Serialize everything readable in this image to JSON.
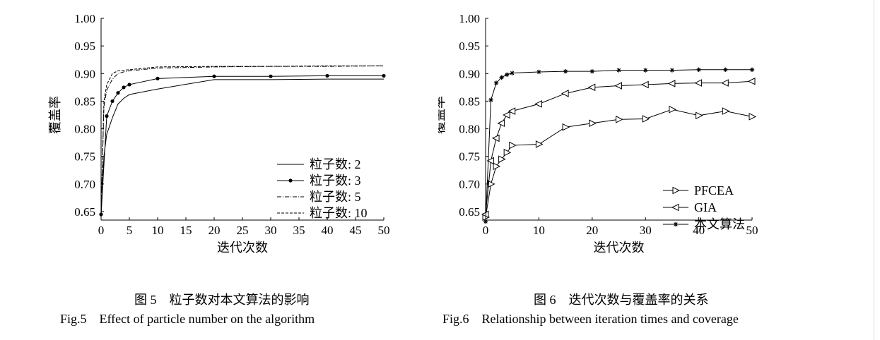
{
  "charts": [
    {
      "type": "line",
      "xlabel": "迭代次数",
      "ylabel": "覆盖率",
      "xlim": [
        0,
        50
      ],
      "ylim": [
        0.65,
        1.0
      ],
      "xticks": [
        "0",
        "5",
        "10",
        "15",
        "20",
        "25",
        "30",
        "35",
        "40",
        "45",
        "50"
      ],
      "yticks": [
        "0.65",
        "0.70",
        "0.75",
        "0.80",
        "0.85",
        "0.90",
        "0.95",
        "1.00"
      ],
      "caption_cn": "图 5　粒子数对本文算法的影响",
      "caption_en": "Fig.5　Effect of particle number on the algorithm",
      "legend_position": "right",
      "series": [
        {
          "name": "粒子数: 2",
          "style": "solid",
          "marker": "none",
          "x": [
            0,
            0.5,
            1,
            2,
            3,
            4,
            5,
            10,
            20,
            30,
            40,
            50
          ],
          "y": [
            0.645,
            0.75,
            0.79,
            0.82,
            0.845,
            0.855,
            0.862,
            0.872,
            0.889,
            0.889,
            0.89,
            0.89
          ]
        },
        {
          "name": "粒子数: 3",
          "style": "solid",
          "marker": "dot",
          "x": [
            0,
            1,
            2,
            3,
            4,
            5,
            10,
            20,
            30,
            40,
            50
          ],
          "y": [
            0.645,
            0.823,
            0.85,
            0.865,
            0.875,
            0.88,
            0.891,
            0.895,
            0.895,
            0.896,
            0.896
          ]
        },
        {
          "name": "粒子数: 5",
          "style": "dashdot",
          "marker": "none",
          "x": [
            0,
            0.5,
            1,
            2,
            3,
            4,
            5,
            10,
            20,
            30,
            40,
            50
          ],
          "y": [
            0.645,
            0.84,
            0.87,
            0.89,
            0.9,
            0.903,
            0.905,
            0.91,
            0.912,
            0.913,
            0.913,
            0.914
          ]
        },
        {
          "name": "粒子数: 10",
          "style": "dashed",
          "marker": "none",
          "x": [
            0,
            0.5,
            1,
            2,
            3,
            4,
            5,
            10,
            20,
            30,
            40,
            50
          ],
          "y": [
            0.645,
            0.85,
            0.88,
            0.9,
            0.905,
            0.906,
            0.907,
            0.912,
            0.913,
            0.913,
            0.914,
            0.914
          ]
        }
      ]
    },
    {
      "type": "line",
      "xlabel": "迭代次数",
      "ylabel": "覆盖率",
      "xlim": [
        0,
        50
      ],
      "ylim": [
        0.65,
        1.0
      ],
      "xticks": [
        "0",
        "10",
        "20",
        "30",
        "40",
        "50"
      ],
      "yticks": [
        "0.65",
        "0.70",
        "0.75",
        "0.80",
        "0.85",
        "0.90",
        "0.95",
        "1.00"
      ],
      "caption_cn": "图 6　迭代次数与覆盖率的关系",
      "caption_en": "Fig.6　Relationship between iteration times and coverage",
      "legend_position": "bottom-right",
      "series": [
        {
          "name": "PFCEA",
          "style": "solid",
          "marker": "triangle-right",
          "x": [
            0,
            1,
            2,
            3,
            4,
            5,
            10,
            15,
            20,
            25,
            30,
            35,
            40,
            45,
            50
          ],
          "y": [
            0.64,
            0.7,
            0.732,
            0.745,
            0.757,
            0.77,
            0.772,
            0.803,
            0.81,
            0.817,
            0.818,
            0.835,
            0.824,
            0.832,
            0.822
          ]
        },
        {
          "name": "GIA",
          "style": "solid",
          "marker": "triangle-left",
          "x": [
            0,
            1,
            2,
            3,
            4,
            5,
            10,
            15,
            20,
            25,
            30,
            35,
            40,
            45,
            50
          ],
          "y": [
            0.645,
            0.742,
            0.783,
            0.81,
            0.825,
            0.832,
            0.845,
            0.864,
            0.875,
            0.878,
            0.88,
            0.882,
            0.883,
            0.883,
            0.886
          ]
        },
        {
          "name": "本文算法",
          "style": "solid",
          "marker": "star",
          "x": [
            0,
            1,
            2,
            3,
            4,
            5,
            10,
            15,
            20,
            25,
            30,
            35,
            40,
            45,
            50
          ],
          "y": [
            0.632,
            0.852,
            0.883,
            0.893,
            0.898,
            0.901,
            0.903,
            0.904,
            0.904,
            0.906,
            0.906,
            0.906,
            0.907,
            0.907,
            0.907
          ]
        }
      ]
    }
  ]
}
